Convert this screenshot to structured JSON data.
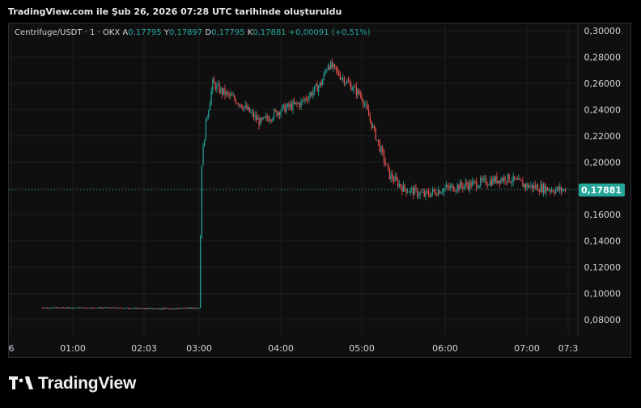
{
  "caption": "TradingView.com ile Şub 26, 2026 07:28 UTC tarihinde oluşturuldu",
  "legend": {
    "symbol": "Centrifuge/USDT · 1 · OKX",
    "open_label": "A",
    "open": "0,17795",
    "high_label": "Y",
    "high": "0,17897",
    "low_label": "D",
    "low": "0,17795",
    "close_label": "K",
    "close": "0,17881",
    "change": "+0,00091 (+0,51%)"
  },
  "logo_text": "TradingView",
  "last_price_label": "0,17881",
  "colors": {
    "up": "#26a69a",
    "down": "#ef5350",
    "background": "#0f0f0f",
    "grid": "#1e1e1e",
    "price_line": "#26a69a"
  },
  "chart_data": {
    "type": "candlestick",
    "symbol": "Centrifuge/USDT",
    "interval": "1",
    "exchange": "OKX",
    "ylim": [
      0.07,
      0.3
    ],
    "y_ticks": [
      "0,08000",
      "0,10000",
      "0,12000",
      "0,14000",
      "0,16000",
      "0,18000",
      "0,20000",
      "0,22000",
      "0,24000",
      "0,26000",
      "0,28000",
      "0,30000"
    ],
    "x_ticks": [
      "6",
      "01:00",
      "02:03",
      "03:00",
      "04:00",
      "05:00",
      "06:00",
      "07:00",
      "07:3"
    ],
    "last_price": 0.17881,
    "price_path": [
      {
        "time": "00:30",
        "price": 0.0892
      },
      {
        "time": "01:00",
        "price": 0.089
      },
      {
        "time": "01:30",
        "price": 0.0891
      },
      {
        "time": "02:03",
        "price": 0.0885
      },
      {
        "time": "02:30",
        "price": 0.0885
      },
      {
        "time": "03:00",
        "price": 0.089
      },
      {
        "time": "03:02",
        "price": 0.2
      },
      {
        "time": "03:05",
        "price": 0.23
      },
      {
        "time": "03:10",
        "price": 0.26
      },
      {
        "time": "03:15",
        "price": 0.255
      },
      {
        "time": "03:30",
        "price": 0.245
      },
      {
        "time": "03:45",
        "price": 0.23
      },
      {
        "time": "04:00",
        "price": 0.24
      },
      {
        "time": "04:15",
        "price": 0.245
      },
      {
        "time": "04:30",
        "price": 0.26
      },
      {
        "time": "04:35",
        "price": 0.275
      },
      {
        "time": "04:45",
        "price": 0.265
      },
      {
        "time": "05:00",
        "price": 0.25
      },
      {
        "time": "05:10",
        "price": 0.22
      },
      {
        "time": "05:20",
        "price": 0.19
      },
      {
        "time": "05:30",
        "price": 0.18
      },
      {
        "time": "05:45",
        "price": 0.175
      },
      {
        "time": "06:00",
        "price": 0.18
      },
      {
        "time": "06:30",
        "price": 0.185
      },
      {
        "time": "06:45",
        "price": 0.188
      },
      {
        "time": "07:00",
        "price": 0.182
      },
      {
        "time": "07:20",
        "price": 0.179
      },
      {
        "time": "07:28",
        "price": 0.1788
      }
    ],
    "grid": true
  }
}
